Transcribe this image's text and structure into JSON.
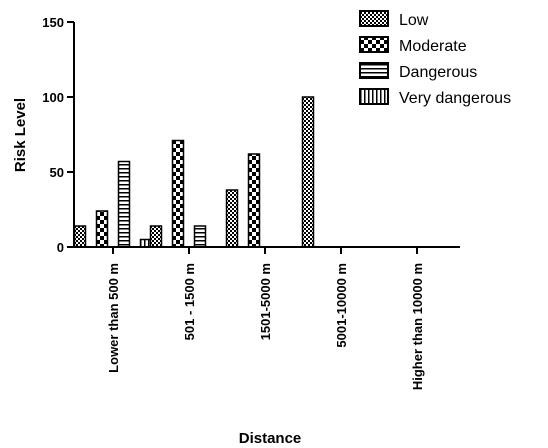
{
  "chart_data": {
    "type": "bar",
    "title": "",
    "xlabel": "Distance",
    "ylabel": "Risk Level",
    "ylim": [
      0,
      150
    ],
    "yticks": [
      0,
      50,
      100,
      150
    ],
    "grid": false,
    "legend_position": "top-right",
    "categories": [
      "Lower than 500 m",
      "501 - 1500 m",
      "1501-5000 m",
      "5001-10000 m",
      "Higher than 10000 m"
    ],
    "series": [
      {
        "name": "Low",
        "pattern": "small-checker",
        "values": [
          14,
          14,
          38,
          100,
          0
        ]
      },
      {
        "name": "Moderate",
        "pattern": "large-checker",
        "values": [
          24,
          71,
          62,
          0,
          0
        ]
      },
      {
        "name": "Dangerous",
        "pattern": "horizontal-lines",
        "values": [
          57,
          14,
          0,
          0,
          0
        ]
      },
      {
        "name": "Very dangerous",
        "pattern": "vertical-lines",
        "values": [
          5,
          0,
          0,
          0,
          0
        ]
      }
    ]
  }
}
